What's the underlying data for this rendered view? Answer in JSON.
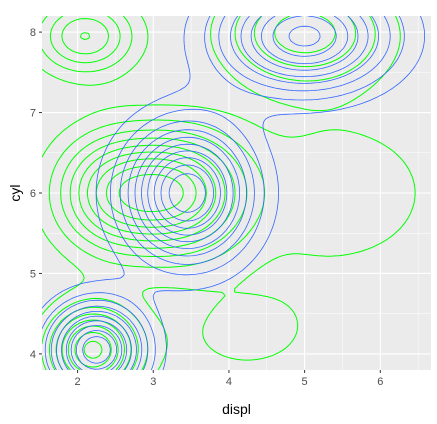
{
  "chart_data": {
    "type": "contour",
    "title": "",
    "xlabel": "displ",
    "ylabel": "cyl",
    "xlim": [
      1.53,
      6.67
    ],
    "ylim": [
      3.8,
      8.2
    ],
    "x_ticks": [
      "2",
      "3",
      "4",
      "5",
      "6"
    ],
    "x_tick_values": [
      2,
      3,
      4,
      5,
      6
    ],
    "y_ticks": [
      "4",
      "5",
      "6",
      "7",
      "8"
    ],
    "y_tick_values": [
      4,
      5,
      6,
      7,
      8
    ],
    "grid": true,
    "legend": "none",
    "colors": {
      "panel": "#ebebeb",
      "gridline": "#ffffff",
      "blue_series": "#3366ff",
      "green_series": "#00ff00"
    },
    "series": [
      {
        "color": "#3366ff",
        "levels": 10,
        "peaks": [
          {
            "x": 3.45,
            "y": 6.0
          },
          {
            "x": 2.25,
            "y": 4.05
          },
          {
            "x": 5.0,
            "y": 7.95
          }
        ]
      },
      {
        "color": "#00ff00",
        "levels": 9,
        "peaks": [
          {
            "x": 2.5,
            "y": 6.0
          },
          {
            "x": 3.4,
            "y": 6.0
          },
          {
            "x": 2.2,
            "y": 4.05
          },
          {
            "x": 2.1,
            "y": 7.95
          },
          {
            "x": 5.0,
            "y": 8.0
          }
        ]
      }
    ]
  }
}
